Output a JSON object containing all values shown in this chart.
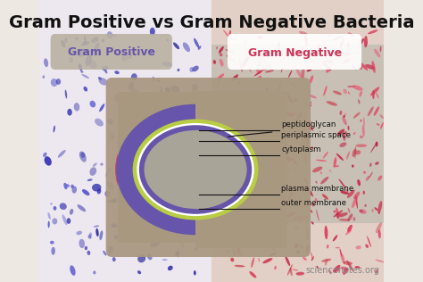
{
  "title": "Gram Positive vs Gram Negative Bacteria",
  "title_fontsize": 14,
  "title_fontweight": "bold",
  "bg_left_color": "#ede8f2",
  "bg_right_color": "#e8d5cc",
  "gram_positive_label": "Gram Positive",
  "gram_negative_label": "Gram Negative",
  "gram_positive_color": "#6655aa",
  "gram_negative_color": "#cc3355",
  "gram_positive_box_color": "#b8b0a0",
  "gram_negative_box_color": "#ffffff",
  "diagram_box_color": "#a89880",
  "cytoplasm_color": "#a8a498",
  "purple_ring_color": "#6655aa",
  "green_ring_color": "#b8cc44",
  "pink_ring_color": "#cc4466",
  "white_ring_color": "#ffffff",
  "blue_ring_color": "#7777bb",
  "layers": [
    "peptidoglycan",
    "periplasmic space",
    "cytoplasm",
    "plasma membrane",
    "outer membrane"
  ],
  "watermark": "sciencenotes.org",
  "watermark_color": "#888888",
  "watermark_fontsize": 7,
  "fig_bg": "#ede8e2"
}
